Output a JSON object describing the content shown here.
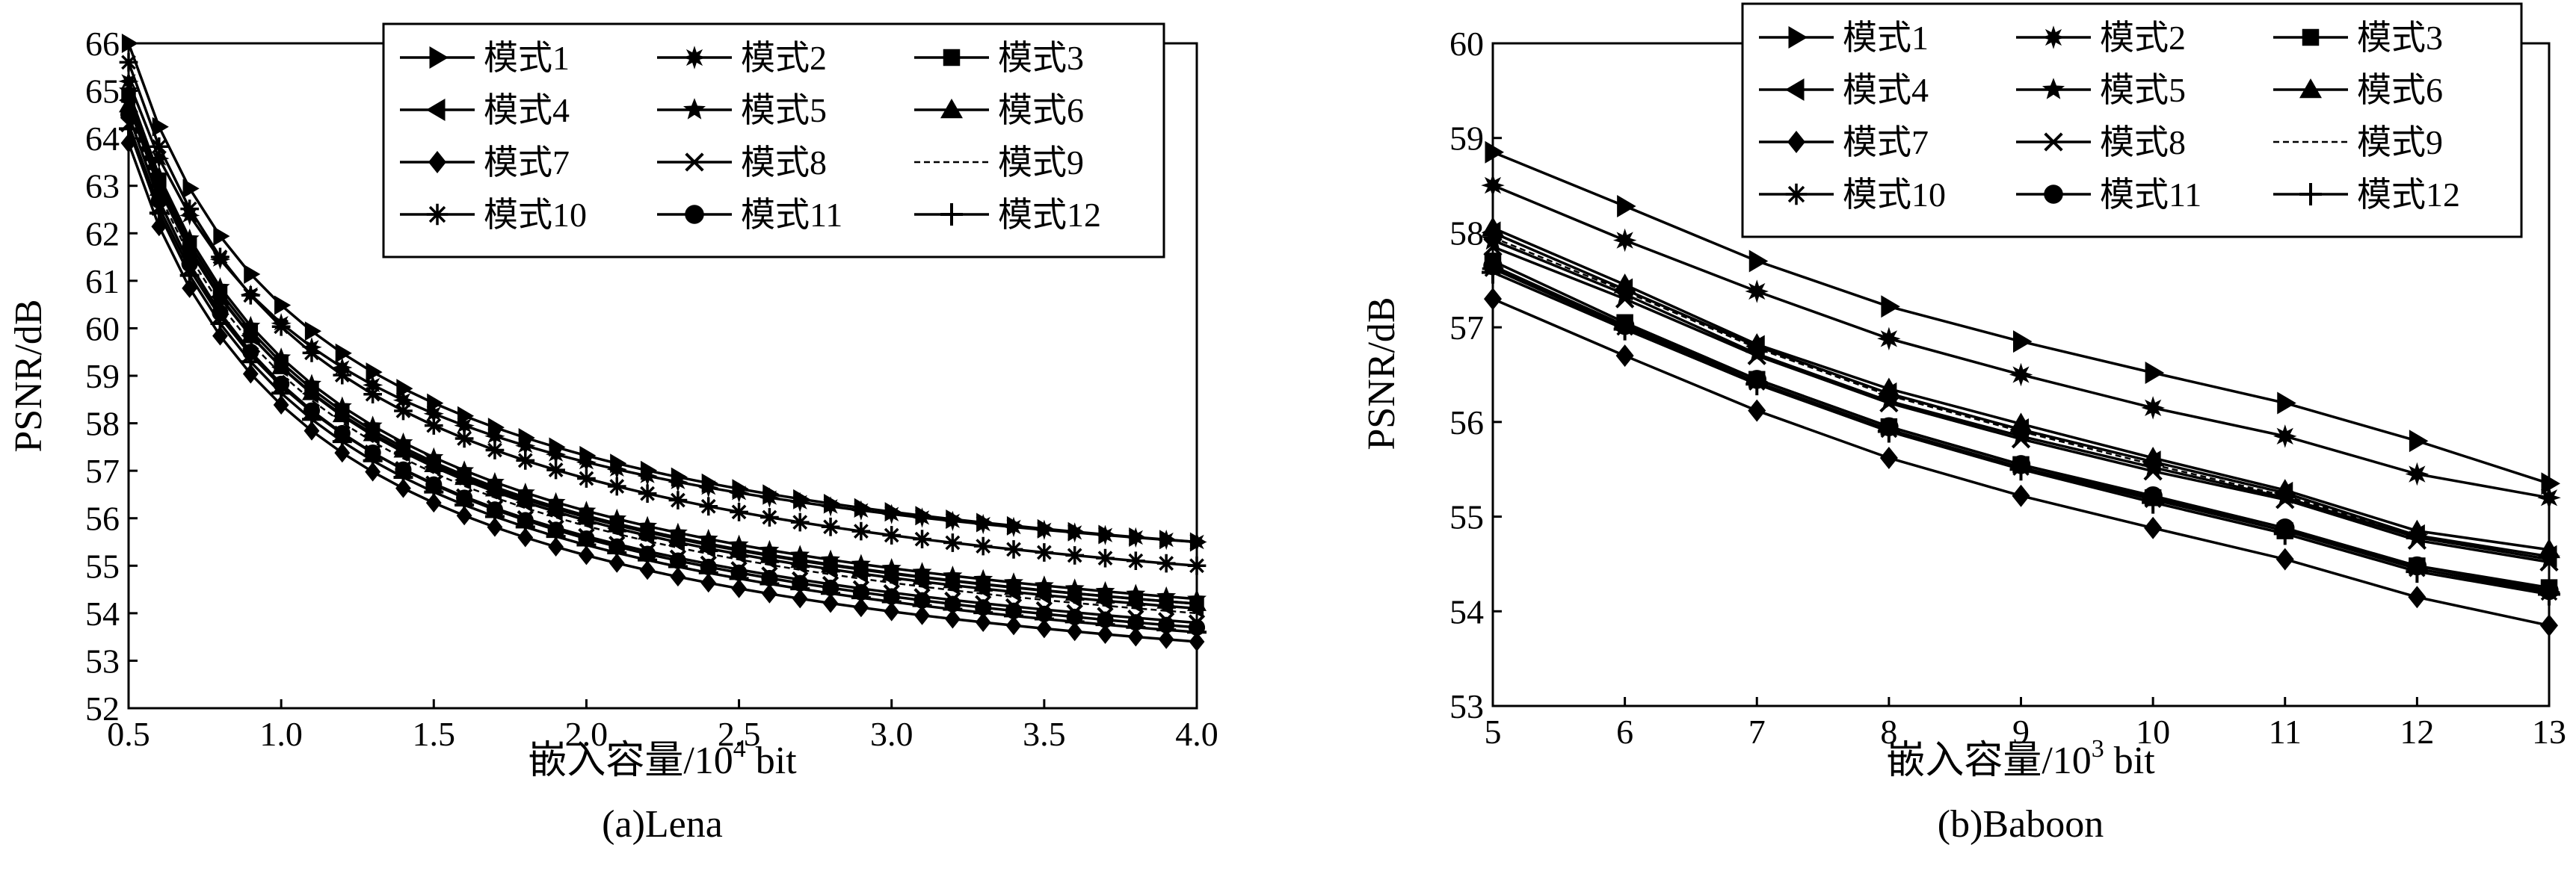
{
  "chart_data": [
    {
      "type": "line",
      "caption": "(a)Lena",
      "xlabel": "嵌入容量/10",
      "xlabel_sup": "4",
      "xlabel_tail": " bit",
      "ylabel": "PSNR/dB",
      "xlim": [
        0.5,
        4.0
      ],
      "ylim": [
        52,
        66
      ],
      "x_ticks": [
        "0.5",
        "1.0",
        "1.5",
        "2.0",
        "2.5",
        "3.0",
        "3.5",
        "4.0"
      ],
      "y_ticks": [
        "52",
        "53",
        "54",
        "55",
        "56",
        "57",
        "58",
        "59",
        "60",
        "61",
        "62",
        "63",
        "64",
        "65",
        "66"
      ],
      "x": [
        0.5,
        0.6,
        0.7,
        0.8,
        0.9,
        1.0,
        1.1,
        1.2,
        1.3,
        1.4,
        1.5,
        1.6,
        1.7,
        1.8,
        1.9,
        2.0,
        2.1,
        2.2,
        2.3,
        2.4,
        2.5,
        2.6,
        2.7,
        2.8,
        2.9,
        3.0,
        3.1,
        3.2,
        3.3,
        3.4,
        3.5,
        3.6,
        3.7,
        3.8,
        3.9,
        4.0
      ],
      "legend": {
        "position": "top-right",
        "columns": 3
      },
      "series": [
        {
          "name": "模式1",
          "marker": "triangle-right",
          "start": 66.0,
          "end": 55.5
        },
        {
          "name": "模式2",
          "marker": "star-burst",
          "start": 65.2,
          "end": 55.5
        },
        {
          "name": "模式3",
          "marker": "square",
          "start": 64.9,
          "end": 54.2
        },
        {
          "name": "模式4",
          "marker": "triangle-left",
          "start": 64.8,
          "end": 54.1
        },
        {
          "name": "模式5",
          "marker": "star",
          "start": 65.0,
          "end": 54.3
        },
        {
          "name": "模式6",
          "marker": "triangle-up",
          "start": 64.7,
          "end": 54.2
        },
        {
          "name": "模式7",
          "marker": "diamond",
          "start": 63.9,
          "end": 53.4
        },
        {
          "name": "模式8",
          "marker": "x",
          "start": 64.3,
          "end": 53.8
        },
        {
          "name": "模式9",
          "marker": "none",
          "dashed": true,
          "start": 64.6,
          "end": 54.0
        },
        {
          "name": "模式10",
          "marker": "asterisk",
          "start": 65.6,
          "end": 55.0
        },
        {
          "name": "模式11",
          "marker": "circle",
          "start": 64.5,
          "end": 53.7
        },
        {
          "name": "模式12",
          "marker": "plus",
          "start": 64.2,
          "end": 53.6
        }
      ]
    },
    {
      "type": "line",
      "caption": "(b)Baboon",
      "xlabel": "嵌入容量/10",
      "xlabel_sup": "3",
      "xlabel_tail": " bit",
      "ylabel": "PSNR/dB",
      "xlim": [
        5,
        13
      ],
      "ylim": [
        53,
        60
      ],
      "x_ticks": [
        "5",
        "6",
        "7",
        "8",
        "9",
        "10",
        "11",
        "12",
        "13"
      ],
      "y_ticks": [
        "53",
        "54",
        "55",
        "56",
        "57",
        "58",
        "59",
        "60"
      ],
      "x": [
        5,
        6,
        7,
        8,
        9,
        10,
        11,
        12,
        13
      ],
      "legend": {
        "position": "top-right",
        "columns": 3
      },
      "series": [
        {
          "name": "模式1",
          "marker": "triangle-right",
          "values": [
            58.85,
            58.28,
            57.7,
            57.22,
            56.85,
            56.52,
            56.2,
            55.8,
            55.35
          ]
        },
        {
          "name": "模式2",
          "marker": "star-burst",
          "values": [
            58.5,
            57.92,
            57.38,
            56.88,
            56.5,
            56.15,
            55.85,
            55.45,
            55.2
          ]
        },
        {
          "name": "模式3",
          "marker": "square",
          "values": [
            57.7,
            57.05,
            56.45,
            55.95,
            55.55,
            55.2,
            54.85,
            54.48,
            54.25
          ]
        },
        {
          "name": "模式4",
          "marker": "triangle-left",
          "values": [
            58.0,
            57.4,
            56.8,
            56.3,
            55.92,
            55.58,
            55.25,
            54.8,
            54.58
          ]
        },
        {
          "name": "模式5",
          "marker": "star",
          "values": [
            57.92,
            57.35,
            56.72,
            56.22,
            55.85,
            55.52,
            55.2,
            54.78,
            54.55
          ]
        },
        {
          "name": "模式6",
          "marker": "triangle-up",
          "values": [
            58.05,
            57.45,
            56.82,
            56.35,
            55.98,
            55.62,
            55.28,
            54.85,
            54.65
          ]
        },
        {
          "name": "模式7",
          "marker": "diamond",
          "values": [
            57.3,
            56.7,
            56.12,
            55.62,
            55.22,
            54.88,
            54.55,
            54.15,
            53.85
          ]
        },
        {
          "name": "模式8",
          "marker": "x",
          "values": [
            57.85,
            57.3,
            56.7,
            56.2,
            55.82,
            55.48,
            55.18,
            54.75,
            54.52
          ]
        },
        {
          "name": "模式9",
          "marker": "none",
          "dashed": true,
          "values": [
            57.95,
            57.38,
            56.78,
            56.28,
            55.9,
            55.55,
            55.22,
            54.8,
            54.58
          ]
        },
        {
          "name": "模式10",
          "marker": "asterisk",
          "values": [
            57.62,
            57.0,
            56.42,
            55.92,
            55.52,
            55.18,
            54.85,
            54.45,
            54.2
          ]
        },
        {
          "name": "模式11",
          "marker": "circle",
          "values": [
            57.65,
            57.02,
            56.45,
            55.95,
            55.55,
            55.22,
            54.88,
            54.48,
            54.22
          ]
        },
        {
          "name": "模式12",
          "marker": "plus",
          "values": [
            57.58,
            56.98,
            56.4,
            55.9,
            55.5,
            55.15,
            54.82,
            54.42,
            54.18
          ]
        }
      ]
    }
  ]
}
